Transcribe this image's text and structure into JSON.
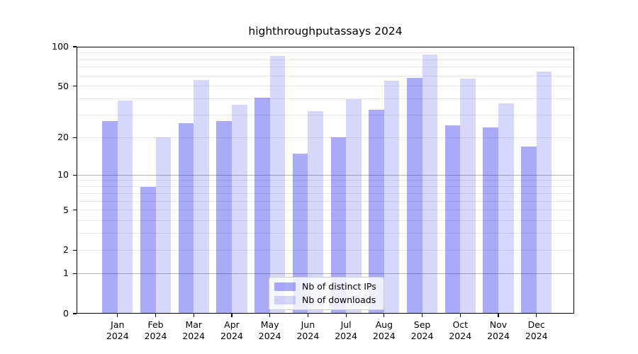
{
  "chart_data": {
    "type": "bar",
    "title": "highthroughputassays 2024",
    "categories": [
      "Jan",
      "Feb",
      "Mar",
      "Apr",
      "May",
      "Jun",
      "Jul",
      "Aug",
      "Sep",
      "Oct",
      "Nov",
      "Dec"
    ],
    "xtick_second_line": "2024",
    "series": [
      {
        "name": "Nb of distinct IPs",
        "color": "rgba(42,42,239,0.40)",
        "values": [
          27,
          8,
          26,
          27,
          41,
          15,
          20,
          33,
          58,
          25,
          24,
          17
        ]
      },
      {
        "name": "Nb of downloads",
        "color": "rgba(42,42,239,0.19)",
        "values": [
          39,
          20,
          56,
          36,
          85,
          32,
          40,
          55,
          87,
          57,
          37,
          65
        ]
      }
    ],
    "yscale": "symlog",
    "ylim": [
      0,
      100
    ],
    "yticks": [
      100,
      50,
      20,
      10,
      5,
      2,
      1,
      0
    ],
    "grid": true,
    "grid_major": [
      1,
      10,
      100
    ],
    "grid_minor": [
      2,
      3,
      4,
      5,
      6,
      7,
      8,
      9,
      20,
      30,
      40,
      50,
      60,
      70,
      80,
      90
    ],
    "legend_position": "lower center",
    "colors": {
      "bar_dark_apparent": "#a9a9f8",
      "bar_light_apparent": "#d7d7f6",
      "grid_major": "#b3b3b3",
      "grid_minor": "#e8e8e8",
      "axis": "#000000",
      "legend_border": "#cccccc"
    }
  }
}
